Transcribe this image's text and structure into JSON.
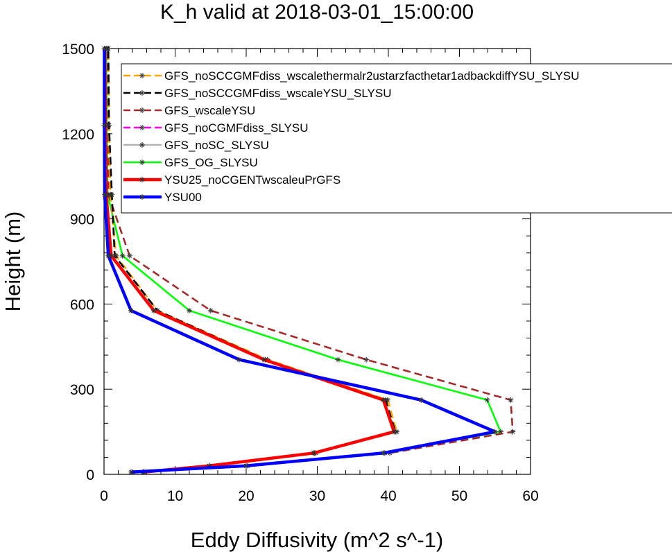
{
  "chart_data": {
    "type": "line",
    "title": "K_h valid at 2018-03-01_15:00:00",
    "xlabel": "Eddy Diffusivity (m^2 s^-1)",
    "ylabel": "Height (m)",
    "xlim": [
      0,
      60
    ],
    "ylim": [
      0,
      1500
    ],
    "xticks": [
      0,
      10,
      20,
      30,
      40,
      50,
      60
    ],
    "yticks": [
      0,
      300,
      600,
      900,
      1200,
      1500
    ],
    "grid": false,
    "legend_position": "top-right",
    "series": [
      {
        "name": "GFS_noSCCGMFdiss_wscalethermalr2ustarzfacthetar1adbackdiffYSU_SLYSU",
        "color": "#ffa500",
        "dash": "dashed",
        "marker": "asterisk",
        "points": [
          [
            5.6,
            8
          ],
          [
            14.8,
            30
          ],
          [
            29.8,
            75
          ],
          [
            41.2,
            150
          ],
          [
            39.9,
            262
          ],
          [
            23,
            404
          ],
          [
            7.5,
            577
          ],
          [
            1.7,
            770
          ],
          [
            0.9,
            985
          ],
          [
            0.7,
            1230
          ],
          [
            0.6,
            1500
          ]
        ]
      },
      {
        "name": "GFS_noSCCGMFdiss_wscaleYSU_SLYSU",
        "color": "#000000",
        "dash": "dashed",
        "marker": "asterisk",
        "points": [
          [
            5.5,
            8
          ],
          [
            14.8,
            30
          ],
          [
            29.6,
            75
          ],
          [
            41,
            150
          ],
          [
            39.6,
            262
          ],
          [
            22.7,
            404
          ],
          [
            7.5,
            577
          ],
          [
            1.5,
            770
          ],
          [
            1.1,
            985
          ],
          [
            0.7,
            1230
          ],
          [
            0.6,
            1500
          ]
        ]
      },
      {
        "name": "GFS_wscaleYSU",
        "color": "#a52a2a",
        "dash": "dashed",
        "marker": "asterisk",
        "points": [
          [
            4,
            8
          ],
          [
            20.2,
            30
          ],
          [
            40.2,
            75
          ],
          [
            57.5,
            150
          ],
          [
            57.2,
            262
          ],
          [
            36.9,
            404
          ],
          [
            15,
            577
          ],
          [
            3.6,
            770
          ],
          [
            0.6,
            985
          ],
          [
            0.6,
            1230
          ],
          [
            0.5,
            1500
          ]
        ]
      },
      {
        "name": "GFS_noCGMFdiss_SLYSU",
        "color": "#ff00ff",
        "dash": "dashed",
        "marker": "asterisk",
        "points": []
      },
      {
        "name": "GFS_noSC_SLYSU",
        "color": "#b4b4b4",
        "dash": "solid",
        "marker": "asterisk",
        "points": []
      },
      {
        "name": "GFS_OG_SLYSU",
        "color": "#00ff00",
        "dash": "solid",
        "marker": "asterisk",
        "points": [
          [
            4,
            8
          ],
          [
            20,
            30
          ],
          [
            39.5,
            75
          ],
          [
            55.8,
            150
          ],
          [
            53.9,
            262
          ],
          [
            32.9,
            404
          ],
          [
            12,
            577
          ],
          [
            2.6,
            770
          ],
          [
            0.5,
            985
          ],
          [
            0.4,
            1230
          ],
          [
            0.3,
            1500
          ]
        ]
      },
      {
        "name": "YSU25_noCGENTwscaleuPrGFS",
        "color": "#ff0000",
        "dash": "solid",
        "marker": "asterisk",
        "points": [
          [
            5.6,
            8
          ],
          [
            14.8,
            30
          ],
          [
            29.5,
            75
          ],
          [
            40.8,
            150
          ],
          [
            39.3,
            262
          ],
          [
            22.5,
            404
          ],
          [
            7,
            577
          ],
          [
            1,
            770
          ],
          [
            0.3,
            985
          ],
          [
            0.2,
            1230
          ],
          [
            0.1,
            1500
          ]
        ]
      },
      {
        "name": "YSU00",
        "color": "#0000ff",
        "dash": "solid",
        "marker": "asterisk",
        "points": [
          [
            3.8,
            8
          ],
          [
            20,
            30
          ],
          [
            39.3,
            75
          ],
          [
            55,
            150
          ],
          [
            44.6,
            262
          ],
          [
            19,
            404
          ],
          [
            3.8,
            577
          ],
          [
            0.6,
            770
          ],
          [
            0.1,
            985
          ],
          [
            0.05,
            1230
          ],
          [
            0.05,
            1500
          ]
        ]
      }
    ]
  }
}
